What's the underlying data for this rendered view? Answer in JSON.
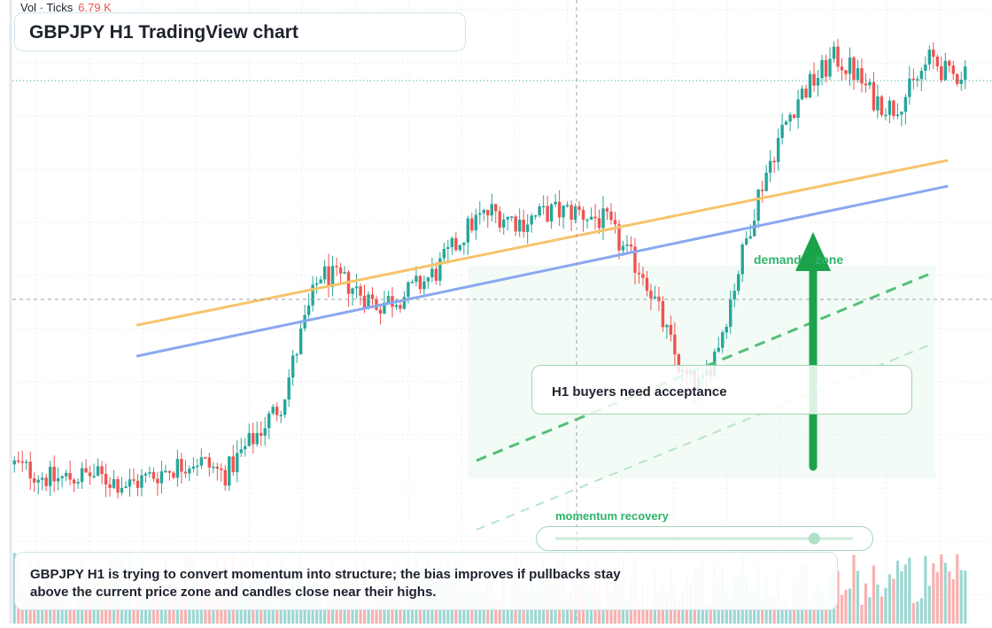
{
  "header": {
    "title": "GBPJPY H1 TradingView chart",
    "vol_label": "Vol · Ticks",
    "vol_value": "6.79 K"
  },
  "annotations": {
    "note": "H1 buyers need acceptance",
    "demand": "demand    zone",
    "momentum": "momentum recovery",
    "momentum_level": 0.87,
    "summary": "GBPJPY H1 is trying to convert momentum into structure; the bias improves if pullbacks stay above the current price zone and candles close near their highs."
  },
  "colors": {
    "up": "#26a69a",
    "down": "#ef5350",
    "orange_line": "#f6c46b",
    "blue_line": "#8aa8f0",
    "accent": "#1aa34a"
  },
  "chart_data": {
    "type": "candlestick",
    "title": "GBPJPY H1 TradingView chart",
    "xlabel": "",
    "ylabel": "",
    "ylim": [
      0,
      100
    ],
    "grid": true,
    "volume_label": "Vol · Ticks",
    "volume_value": "6.79 K",
    "path": [
      [
        0,
        13
      ],
      [
        4,
        10
      ],
      [
        8,
        11
      ],
      [
        12,
        9
      ],
      [
        16,
        12
      ],
      [
        19,
        14
      ],
      [
        22,
        11
      ],
      [
        25,
        18
      ],
      [
        28,
        25
      ],
      [
        30,
        38
      ],
      [
        32,
        50
      ],
      [
        35,
        48
      ],
      [
        38,
        44
      ],
      [
        41,
        46
      ],
      [
        44,
        50
      ],
      [
        46,
        55
      ],
      [
        48,
        60
      ],
      [
        50,
        62
      ],
      [
        53,
        60
      ],
      [
        56,
        62
      ],
      [
        59,
        62
      ],
      [
        62,
        60
      ],
      [
        64,
        54
      ],
      [
        66,
        50
      ],
      [
        68,
        40
      ],
      [
        70,
        30
      ],
      [
        72,
        28
      ],
      [
        74,
        38
      ],
      [
        76,
        52
      ],
      [
        78,
        66
      ],
      [
        80,
        76
      ],
      [
        82,
        84
      ],
      [
        84,
        88
      ],
      [
        86,
        92
      ],
      [
        88,
        89
      ],
      [
        90,
        84
      ],
      [
        92,
        82
      ],
      [
        94,
        86
      ],
      [
        96,
        92
      ],
      [
        98,
        88
      ],
      [
        100,
        90
      ]
    ],
    "trendlines": [
      {
        "name": "",
        "from": [
          13,
          40
        ],
        "to": [
          98,
          72
        ]
      },
      {
        "name": "",
        "from": [
          13,
          34
        ],
        "to": [
          98,
          67
        ]
      }
    ]
  }
}
